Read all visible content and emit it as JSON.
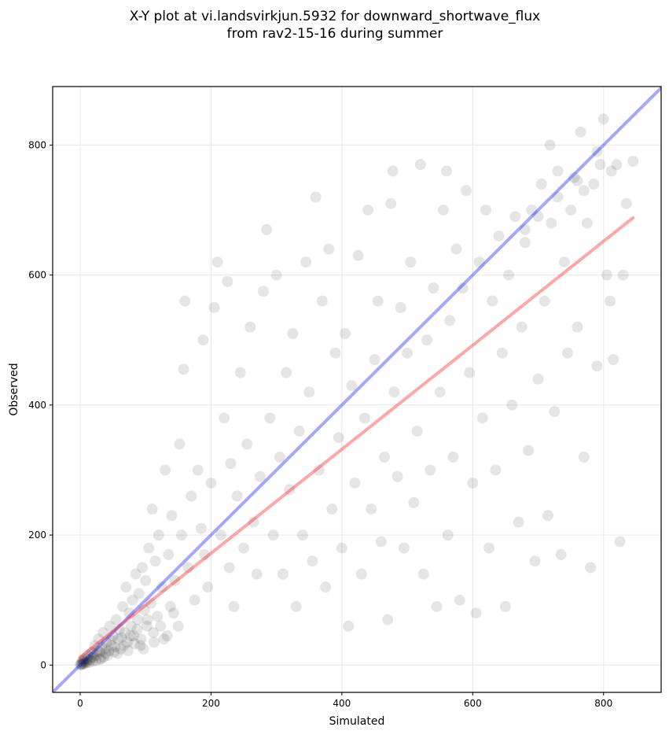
{
  "chart_data": {
    "type": "scatter",
    "title": "X-Y plot at vi.landsvirkjun.5932 for downward_shortwave_flux",
    "subtitle": "from rav2-15-16 during summer",
    "xlabel": "Simulated",
    "ylabel": "Observed",
    "xlim": [
      -42,
      888
    ],
    "ylim": [
      -42,
      890
    ],
    "xticks": [
      0,
      200,
      400,
      600,
      800
    ],
    "yticks": [
      0,
      200,
      400,
      600,
      800
    ],
    "grid": true,
    "marker_color": "#000000",
    "marker_alpha": 0.1,
    "lines": [
      {
        "name": "1:1 line",
        "color": "#0000ff",
        "alpha": 0.35,
        "points": [
          [
            -42,
            -42
          ],
          [
            888,
            888
          ]
        ]
      },
      {
        "name": "regression",
        "color": "#ff0000",
        "alpha": 0.35,
        "points": [
          [
            0,
            12
          ],
          [
            845,
            688
          ]
        ]
      }
    ],
    "points": [
      [
        0,
        0
      ],
      [
        1,
        2
      ],
      [
        2,
        1
      ],
      [
        3,
        5
      ],
      [
        5,
        3
      ],
      [
        4,
        8
      ],
      [
        6,
        2
      ],
      [
        8,
        10
      ],
      [
        10,
        5
      ],
      [
        12,
        15
      ],
      [
        15,
        8
      ],
      [
        18,
        20
      ],
      [
        20,
        12
      ],
      [
        22,
        30
      ],
      [
        25,
        15
      ],
      [
        28,
        40
      ],
      [
        30,
        20
      ],
      [
        32,
        10
      ],
      [
        35,
        50
      ],
      [
        38,
        25
      ],
      [
        40,
        35
      ],
      [
        42,
        15
      ],
      [
        45,
        60
      ],
      [
        48,
        30
      ],
      [
        50,
        45
      ],
      [
        52,
        20
      ],
      [
        55,
        70
      ],
      [
        58,
        40
      ],
      [
        60,
        55
      ],
      [
        62,
        25
      ],
      [
        65,
        90
      ],
      [
        68,
        50
      ],
      [
        70,
        120
      ],
      [
        72,
        35
      ],
      [
        75,
        80
      ],
      [
        78,
        60
      ],
      [
        80,
        100
      ],
      [
        82,
        45
      ],
      [
        85,
        140
      ],
      [
        88,
        70
      ],
      [
        90,
        110
      ],
      [
        92,
        30
      ],
      [
        95,
        150
      ],
      [
        98,
        85
      ],
      [
        100,
        130
      ],
      [
        102,
        60
      ],
      [
        105,
        180
      ],
      [
        108,
        95
      ],
      [
        110,
        240
      ],
      [
        112,
        50
      ],
      [
        115,
        160
      ],
      [
        118,
        75
      ],
      [
        120,
        200
      ],
      [
        125,
        120
      ],
      [
        128,
        40
      ],
      [
        130,
        300
      ],
      [
        135,
        170
      ],
      [
        138,
        90
      ],
      [
        140,
        230
      ],
      [
        145,
        130
      ],
      [
        150,
        60
      ],
      [
        152,
        340
      ],
      [
        155,
        200
      ],
      [
        158,
        455
      ],
      [
        160,
        560
      ],
      [
        165,
        150
      ],
      [
        170,
        260
      ],
      [
        175,
        100
      ],
      [
        180,
        300
      ],
      [
        185,
        210
      ],
      [
        188,
        500
      ],
      [
        190,
        170
      ],
      [
        195,
        120
      ],
      [
        200,
        280
      ],
      [
        205,
        550
      ],
      [
        210,
        620
      ],
      [
        215,
        200
      ],
      [
        220,
        380
      ],
      [
        225,
        590
      ],
      [
        228,
        150
      ],
      [
        230,
        310
      ],
      [
        235,
        90
      ],
      [
        240,
        260
      ],
      [
        245,
        450
      ],
      [
        250,
        180
      ],
      [
        255,
        340
      ],
      [
        260,
        520
      ],
      [
        265,
        220
      ],
      [
        270,
        140
      ],
      [
        275,
        290
      ],
      [
        280,
        575
      ],
      [
        285,
        670
      ],
      [
        290,
        380
      ],
      [
        295,
        200
      ],
      [
        300,
        600
      ],
      [
        305,
        320
      ],
      [
        310,
        140
      ],
      [
        315,
        450
      ],
      [
        320,
        270
      ],
      [
        325,
        510
      ],
      [
        330,
        90
      ],
      [
        335,
        360
      ],
      [
        340,
        200
      ],
      [
        345,
        620
      ],
      [
        350,
        420
      ],
      [
        355,
        160
      ],
      [
        360,
        720
      ],
      [
        365,
        300
      ],
      [
        370,
        560
      ],
      [
        375,
        120
      ],
      [
        380,
        640
      ],
      [
        385,
        240
      ],
      [
        390,
        480
      ],
      [
        395,
        350
      ],
      [
        400,
        180
      ],
      [
        405,
        510
      ],
      [
        410,
        60
      ],
      [
        415,
        430
      ],
      [
        420,
        280
      ],
      [
        425,
        630
      ],
      [
        430,
        140
      ],
      [
        435,
        380
      ],
      [
        440,
        700
      ],
      [
        445,
        240
      ],
      [
        450,
        470
      ],
      [
        455,
        560
      ],
      [
        460,
        190
      ],
      [
        465,
        320
      ],
      [
        470,
        70
      ],
      [
        475,
        710
      ],
      [
        478,
        760
      ],
      [
        480,
        420
      ],
      [
        485,
        290
      ],
      [
        490,
        550
      ],
      [
        495,
        180
      ],
      [
        500,
        480
      ],
      [
        505,
        620
      ],
      [
        510,
        250
      ],
      [
        515,
        360
      ],
      [
        520,
        770
      ],
      [
        525,
        140
      ],
      [
        530,
        500
      ],
      [
        535,
        300
      ],
      [
        540,
        580
      ],
      [
        545,
        90
      ],
      [
        550,
        420
      ],
      [
        555,
        700
      ],
      [
        560,
        760
      ],
      [
        562,
        200
      ],
      [
        565,
        530
      ],
      [
        570,
        320
      ],
      [
        575,
        640
      ],
      [
        580,
        100
      ],
      [
        585,
        580
      ],
      [
        590,
        730
      ],
      [
        595,
        450
      ],
      [
        600,
        280
      ],
      [
        605,
        80
      ],
      [
        610,
        620
      ],
      [
        615,
        380
      ],
      [
        620,
        700
      ],
      [
        625,
        180
      ],
      [
        630,
        560
      ],
      [
        635,
        300
      ],
      [
        640,
        660
      ],
      [
        645,
        480
      ],
      [
        650,
        90
      ],
      [
        655,
        600
      ],
      [
        660,
        400
      ],
      [
        665,
        690
      ],
      [
        670,
        220
      ],
      [
        675,
        520
      ],
      [
        680,
        650
      ],
      [
        685,
        330
      ],
      [
        690,
        700
      ],
      [
        695,
        160
      ],
      [
        700,
        440
      ],
      [
        705,
        740
      ],
      [
        710,
        560
      ],
      [
        715,
        230
      ],
      [
        720,
        680
      ],
      [
        725,
        390
      ],
      [
        730,
        760
      ],
      [
        735,
        170
      ],
      [
        740,
        620
      ],
      [
        745,
        480
      ],
      [
        750,
        700
      ],
      [
        755,
        750
      ],
      [
        760,
        520
      ],
      [
        765,
        820
      ],
      [
        770,
        320
      ],
      [
        775,
        680
      ],
      [
        780,
        150
      ],
      [
        785,
        740
      ],
      [
        790,
        460
      ],
      [
        795,
        770
      ],
      [
        800,
        840
      ],
      [
        805,
        600
      ],
      [
        810,
        560
      ],
      [
        815,
        470
      ],
      [
        820,
        770
      ],
      [
        825,
        190
      ],
      [
        830,
        600
      ],
      [
        835,
        710
      ],
      [
        845,
        775
      ],
      [
        812,
        760
      ],
      [
        790,
        790
      ],
      [
        770,
        730
      ],
      [
        760,
        745
      ],
      [
        718,
        800
      ],
      [
        730,
        720
      ],
      [
        700,
        690
      ],
      [
        680,
        670
      ],
      [
        3,
        1
      ],
      [
        6,
        6
      ],
      [
        9,
        3
      ],
      [
        11,
        9
      ],
      [
        14,
        4
      ],
      [
        16,
        12
      ],
      [
        19,
        6
      ],
      [
        21,
        18
      ],
      [
        24,
        7
      ],
      [
        27,
        22
      ],
      [
        30,
        9
      ],
      [
        33,
        28
      ],
      [
        36,
        12
      ],
      [
        39,
        18
      ],
      [
        44,
        22
      ],
      [
        47,
        38
      ],
      [
        53,
        28
      ],
      [
        57,
        18
      ],
      [
        63,
        42
      ],
      [
        67,
        30
      ],
      [
        73,
        22
      ],
      [
        77,
        45
      ],
      [
        83,
        33
      ],
      [
        87,
        55
      ],
      [
        93,
        40
      ],
      [
        97,
        25
      ],
      [
        103,
        70
      ],
      [
        113,
        35
      ],
      [
        123,
        60
      ],
      [
        133,
        45
      ],
      [
        143,
        80
      ]
    ]
  }
}
